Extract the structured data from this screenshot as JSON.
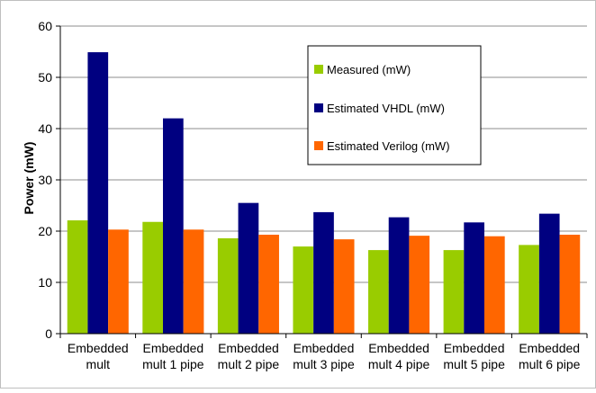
{
  "chart_data": {
    "type": "bar",
    "title": "",
    "xlabel": "",
    "ylabel": "Power (mW)",
    "ylim": [
      0,
      60
    ],
    "yticks": [
      0,
      10,
      20,
      30,
      40,
      50,
      60
    ],
    "grid": "horizontal",
    "legend_position": "top-right",
    "categories": [
      [
        "Embedded",
        "mult"
      ],
      [
        "Embedded",
        "mult 1 pipe"
      ],
      [
        "Embedded",
        "mult 2 pipe"
      ],
      [
        "Embedded",
        "mult 3 pipe"
      ],
      [
        "Embedded",
        "mult 4 pipe"
      ],
      [
        "Embedded",
        "mult 5 pipe"
      ],
      [
        "Embedded",
        "mult 6 pipe"
      ]
    ],
    "series": [
      {
        "name": "Measured (mW)",
        "color": "#99cc00",
        "values": [
          22.1,
          21.8,
          18.6,
          17.0,
          16.3,
          16.3,
          17.3
        ]
      },
      {
        "name": "Estimated VHDL (mW)",
        "color": "#000080",
        "values": [
          54.9,
          42.0,
          25.5,
          23.7,
          22.7,
          21.7,
          23.4
        ]
      },
      {
        "name": "Estimated Verilog (mW)",
        "color": "#ff6600",
        "values": [
          20.3,
          20.3,
          19.3,
          18.4,
          19.1,
          19.0,
          19.3
        ]
      }
    ]
  }
}
